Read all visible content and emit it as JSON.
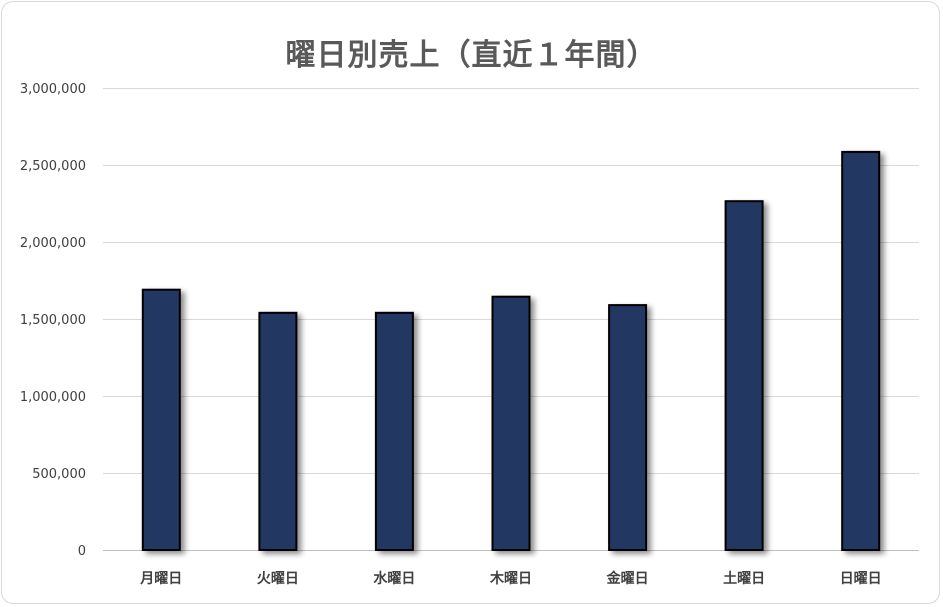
{
  "chart_data": {
    "type": "bar",
    "title": "曜日別売上（直近１年間）",
    "xlabel": "",
    "ylabel": "",
    "categories": [
      "月曜日",
      "火曜日",
      "水曜日",
      "木曜日",
      "金曜日",
      "土曜日",
      "日曜日"
    ],
    "values": [
      1690000,
      1540000,
      1540000,
      1645000,
      1590000,
      2265000,
      2585000
    ],
    "ylim": [
      0,
      3000000
    ],
    "yticks": [
      0,
      500000,
      1000000,
      1500000,
      2000000,
      2500000,
      3000000
    ],
    "ytick_labels": [
      "0",
      "500,000",
      "1,000,000",
      "1,500,000",
      "2,000,000",
      "2,500,000",
      "3,000,000"
    ],
    "grid": true,
    "legend": "none",
    "colors": {
      "bar_fill": "#203864",
      "bar_stroke": "#000000",
      "gridline": "#d9d9d9",
      "axis": "#bfbfbf",
      "text": "#404040",
      "title": "#595959"
    }
  }
}
